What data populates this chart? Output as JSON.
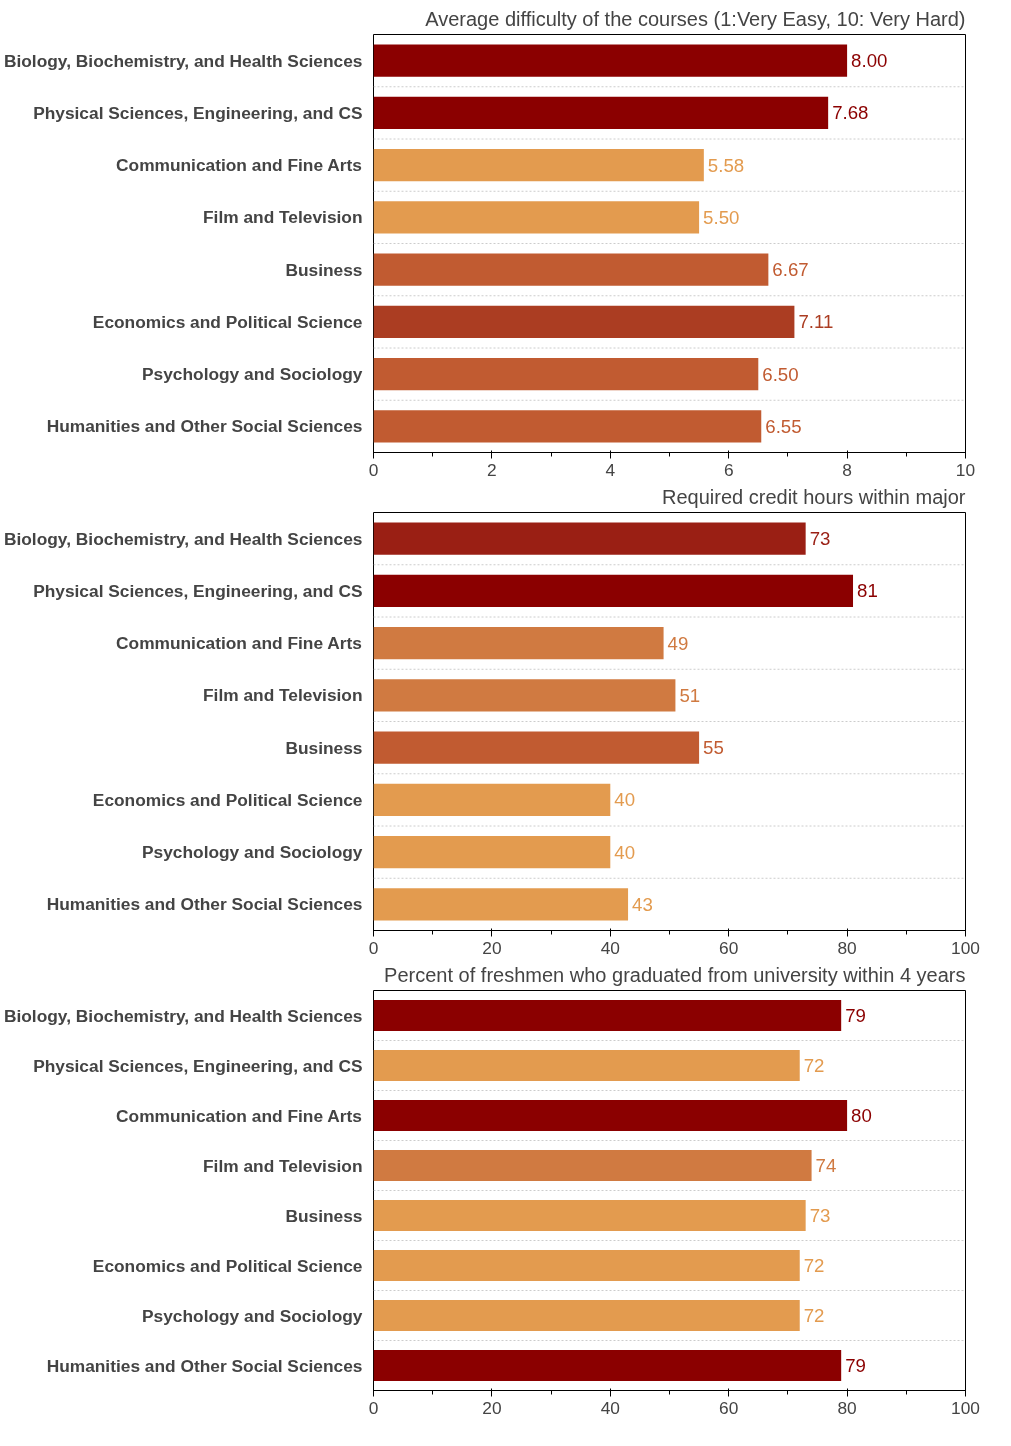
{
  "chart_data": [
    {
      "type": "bar",
      "orientation": "horizontal",
      "title": "Average difficulty of the courses (1:Very Easy, 10: Very Hard)",
      "categories": [
        "Biology, Biochemistry, and Health Sciences",
        "Physical Sciences, Engineering, and CS",
        "Communication and Fine Arts",
        "Film and Television",
        "Business",
        "Economics and Political Science",
        "Psychology and Sociology",
        "Humanities and Other Social Sciences"
      ],
      "values": [
        8.0,
        7.68,
        5.58,
        5.5,
        6.67,
        7.11,
        6.5,
        6.55
      ],
      "value_labels": [
        "8.00",
        "7.68",
        "5.58",
        "5.50",
        "6.67",
        "7.11",
        "6.50",
        "6.55"
      ],
      "colors": [
        "#8b0000",
        "#8b0000",
        "#e39b4f",
        "#e39b4f",
        "#c15b31",
        "#ab3d22",
        "#c15b31",
        "#c15b31"
      ],
      "xlim": [
        0,
        10
      ],
      "xticks": [
        0,
        2,
        4,
        6,
        8,
        10
      ],
      "grid": "y"
    },
    {
      "type": "bar",
      "orientation": "horizontal",
      "title": "Required credit hours within major",
      "categories": [
        "Biology, Biochemistry, and Health Sciences",
        "Physical Sciences, Engineering, and CS",
        "Communication and Fine Arts",
        "Film and Television",
        "Business",
        "Economics and Political Science",
        "Psychology and Sociology",
        "Humanities and Other Social Sciences"
      ],
      "values": [
        73,
        81,
        49,
        51,
        55,
        40,
        40,
        43
      ],
      "colors": [
        "#9a1f14",
        "#8b0000",
        "#d07a41",
        "#d07a41",
        "#c15b31",
        "#e39b4f",
        "#e39b4f",
        "#e39b4f"
      ],
      "data_labels": true,
      "xlim": [
        0,
        100
      ],
      "xticks": [
        0,
        20,
        40,
        60,
        80,
        100
      ],
      "grid": "y"
    },
    {
      "type": "bar",
      "orientation": "horizontal",
      "title": "Percent of freshmen who graduated from university within 4 years",
      "categories": [
        "Biology, Biochemistry, and Health Sciences",
        "Physical Sciences, Engineering, and CS",
        "Communication and Fine Arts",
        "Film and Television",
        "Business",
        "Economics and Political Science",
        "Psychology and Sociology",
        "Humanities and Other Social Sciences"
      ],
      "values": [
        79,
        72,
        80,
        74,
        73,
        72,
        72,
        79
      ],
      "colors": [
        "#8b0000",
        "#e39b4f",
        "#8b0000",
        "#d07a41",
        "#e39b4f",
        "#e39b4f",
        "#e39b4f",
        "#8b0000"
      ],
      "data_labels": true,
      "xlim": [
        0,
        100
      ],
      "xticks": [
        0,
        20,
        40,
        60,
        80,
        100
      ],
      "grid": "y"
    }
  ]
}
